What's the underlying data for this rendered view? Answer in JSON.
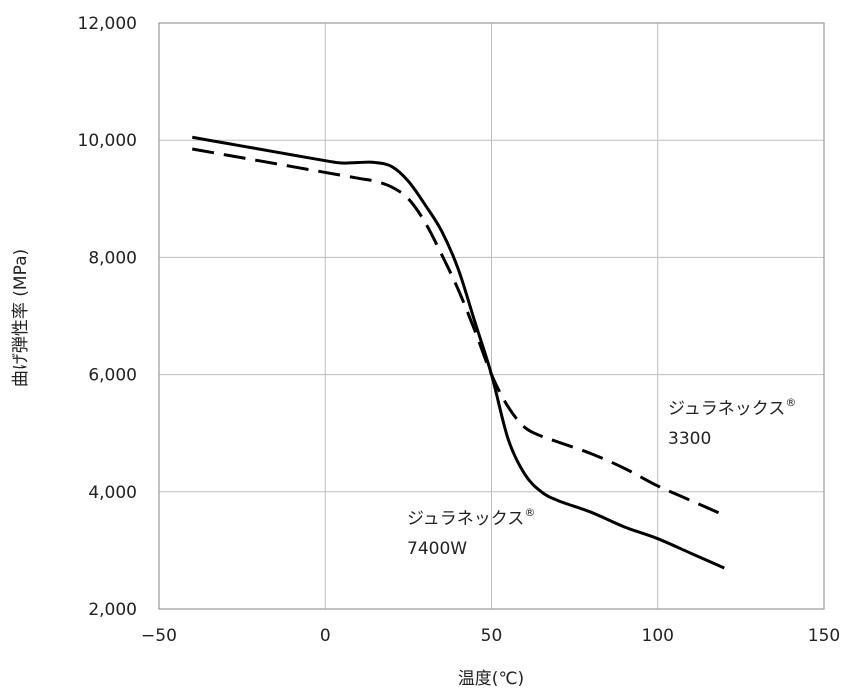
{
  "chart_data": {
    "type": "line",
    "xlabel": "温度(℃)",
    "ylabel": "曲げ弾性率 (MPa)",
    "xlim": [
      -50,
      150
    ],
    "ylim": [
      2000,
      12000
    ],
    "x_ticks": [
      -50,
      0,
      50,
      100,
      150
    ],
    "x_tick_labels": [
      "−50",
      "0",
      "50",
      "100",
      "150"
    ],
    "y_ticks": [
      2000,
      4000,
      6000,
      8000,
      10000,
      12000
    ],
    "y_tick_labels": [
      "2,000",
      "4,000",
      "6,000",
      "8,000",
      "10,000",
      "12,000"
    ],
    "grid": true,
    "colors": {
      "line": "#000000",
      "grid": "#bdbdbd",
      "frame": "#9a9a9a",
      "text": "#222222"
    },
    "series": [
      {
        "name": "ジュラネックス® 7400W",
        "label_main": "ジュラネックス",
        "label_sup": "®",
        "label_sub": "7400W",
        "style": "solid",
        "x": [
          -40,
          -30,
          -20,
          -10,
          0,
          5,
          10,
          15,
          20,
          25,
          30,
          35,
          40,
          45,
          50,
          55,
          60,
          65,
          70,
          80,
          90,
          100,
          110,
          120
        ],
        "y": [
          10050,
          9950,
          9850,
          9750,
          9650,
          9610,
          9620,
          9620,
          9550,
          9300,
          8900,
          8450,
          7800,
          6900,
          6000,
          4900,
          4300,
          4000,
          3850,
          3650,
          3400,
          3200,
          2950,
          2700
        ]
      },
      {
        "name": "ジュラネックス® 3300",
        "label_main": "ジュラネックス",
        "label_sup": "®",
        "label_sub": "3300",
        "style": "dashed",
        "x": [
          -40,
          -30,
          -20,
          -10,
          0,
          10,
          15,
          20,
          25,
          30,
          35,
          40,
          45,
          50,
          55,
          60,
          65,
          70,
          80,
          90,
          100,
          110,
          120
        ],
        "y": [
          9850,
          9750,
          9650,
          9550,
          9450,
          9350,
          9300,
          9200,
          9000,
          8600,
          8050,
          7450,
          6750,
          6000,
          5450,
          5100,
          4950,
          4850,
          4650,
          4400,
          4100,
          3850,
          3600
        ]
      }
    ]
  }
}
